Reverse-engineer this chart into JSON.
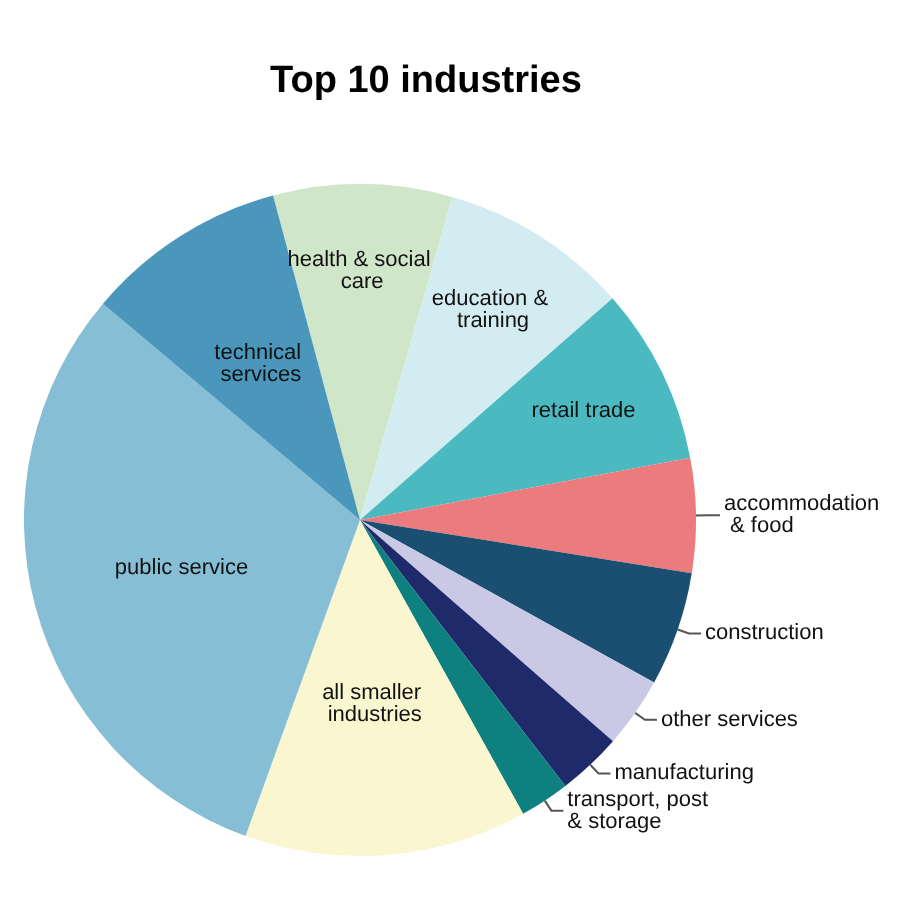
{
  "chart_data": {
    "type": "pie",
    "title": "Top 10 industries",
    "categories": [
      "health & social care",
      "education & training",
      "retail trade",
      "accommodation & food",
      "construction",
      "other services",
      "manufacturing",
      "transport, post & storage",
      "all smaller industries",
      "public service",
      "technical services"
    ],
    "values": [
      8.6,
      9.1,
      8.5,
      5.5,
      5.5,
      3.4,
      3.1,
      2.4,
      13.6,
      30.6,
      9.7
    ],
    "colors": [
      "#d0e6c8",
      "#d3ecf1",
      "#4bbac0",
      "#ec7b7e",
      "#1b4f72",
      "#c9c9e6",
      "#1e2a6a",
      "#0e8080",
      "#faf6cf",
      "#86bed6",
      "#4b97bb"
    ],
    "legend": false
  }
}
